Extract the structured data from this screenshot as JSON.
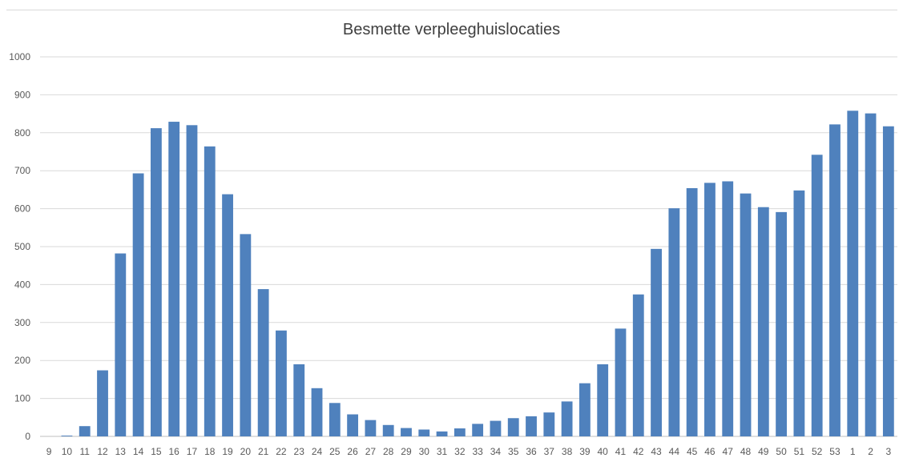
{
  "chart_data": {
    "type": "bar",
    "title": "Besmette verpleeghuislocaties",
    "xlabel": "",
    "ylabel": "",
    "ylim": [
      0,
      1000
    ],
    "yticks": [
      0,
      100,
      200,
      300,
      400,
      500,
      600,
      700,
      800,
      900,
      1000
    ],
    "grid": true,
    "legend": "none",
    "bar_color": "#4f81bd",
    "categories": [
      "9",
      "10",
      "11",
      "12",
      "13",
      "14",
      "15",
      "16",
      "17",
      "18",
      "19",
      "20",
      "21",
      "22",
      "23",
      "24",
      "25",
      "26",
      "27",
      "28",
      "29",
      "30",
      "31",
      "32",
      "33",
      "34",
      "35",
      "36",
      "37",
      "38",
      "39",
      "40",
      "41",
      "42",
      "43",
      "44",
      "45",
      "46",
      "47",
      "48",
      "49",
      "50",
      "51",
      "52",
      "53",
      "1",
      "2",
      "3"
    ],
    "values": [
      0,
      2,
      27,
      174,
      482,
      693,
      812,
      829,
      820,
      764,
      638,
      533,
      388,
      279,
      190,
      127,
      88,
      58,
      43,
      30,
      22,
      18,
      13,
      21,
      33,
      41,
      48,
      53,
      63,
      92,
      140,
      190,
      284,
      374,
      494,
      601,
      654,
      668,
      672,
      640,
      604,
      591,
      648,
      742,
      822,
      858,
      851,
      817
    ]
  }
}
